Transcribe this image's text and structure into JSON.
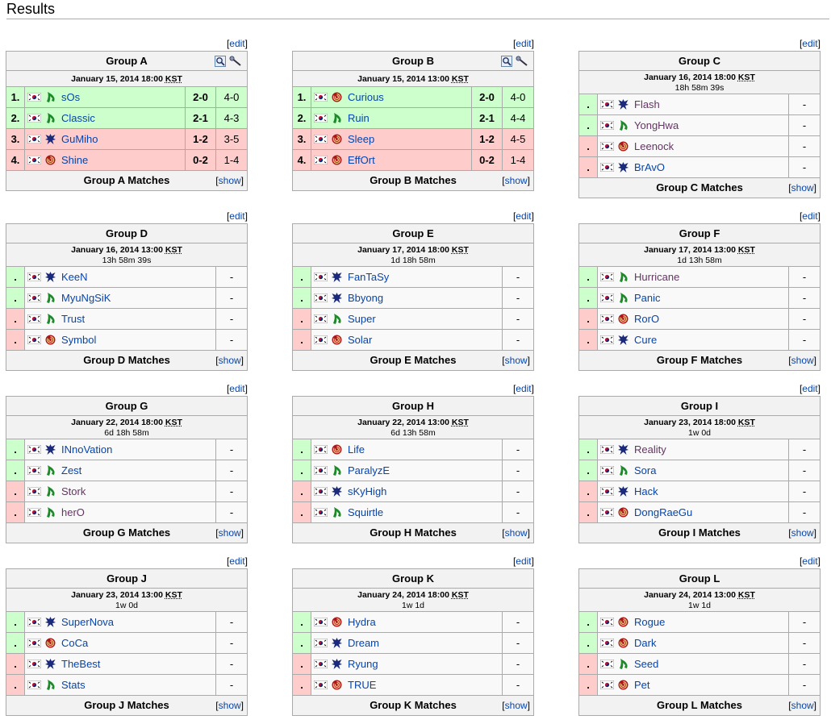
{
  "page": {
    "title": "Results"
  },
  "labels": {
    "edit": "edit",
    "show": "show",
    "dash": "-",
    "dot": "."
  },
  "groups": [
    {
      "name": "Group A",
      "date": "January 15, 2014 18:00",
      "tz": "KST",
      "countdown": "",
      "matches_label": "Group A Matches",
      "complete": true,
      "players": [
        {
          "rank": "1.",
          "name": "sOs",
          "race": "protoss",
          "status": "up",
          "score": "2-0",
          "maps": "4-0",
          "visited": false
        },
        {
          "rank": "2.",
          "name": "Classic",
          "race": "protoss",
          "status": "up",
          "score": "2-1",
          "maps": "4-3",
          "visited": false
        },
        {
          "rank": "3.",
          "name": "GuMiho",
          "race": "terran",
          "status": "down",
          "score": "1-2",
          "maps": "3-5",
          "visited": false
        },
        {
          "rank": "4.",
          "name": "Shine",
          "race": "zerg",
          "status": "down",
          "score": "0-2",
          "maps": "1-4",
          "visited": false
        }
      ]
    },
    {
      "name": "Group B",
      "date": "January 15, 2014 13:00",
      "tz": "KST",
      "countdown": "",
      "matches_label": "Group B Matches",
      "complete": true,
      "players": [
        {
          "rank": "1.",
          "name": "Curious",
          "race": "zerg",
          "status": "up",
          "score": "2-0",
          "maps": "4-0",
          "visited": false
        },
        {
          "rank": "2.",
          "name": "Ruin",
          "race": "protoss",
          "status": "up",
          "score": "2-1",
          "maps": "4-4",
          "visited": false
        },
        {
          "rank": "3.",
          "name": "Sleep",
          "race": "zerg",
          "status": "down",
          "score": "1-2",
          "maps": "4-5",
          "visited": false
        },
        {
          "rank": "4.",
          "name": "EffOrt",
          "race": "zerg",
          "status": "down",
          "score": "0-2",
          "maps": "1-4",
          "visited": false
        }
      ]
    },
    {
      "name": "Group C",
      "date": "January 16, 2014 18:00",
      "tz": "KST",
      "countdown": "18h 58m 39s",
      "matches_label": "Group C Matches",
      "complete": false,
      "players": [
        {
          "name": "Flash",
          "race": "terran",
          "status": "up",
          "visited": true
        },
        {
          "name": "YongHwa",
          "race": "protoss",
          "status": "up",
          "visited": true
        },
        {
          "name": "Leenock",
          "race": "zerg",
          "status": "down",
          "visited": true
        },
        {
          "name": "BrAvO",
          "race": "terran",
          "status": "down",
          "visited": false
        }
      ]
    },
    {
      "name": "Group D",
      "date": "January 16, 2014 13:00",
      "tz": "KST",
      "countdown": "13h 58m 39s",
      "matches_label": "Group D Matches",
      "complete": false,
      "players": [
        {
          "name": "KeeN",
          "race": "terran",
          "status": "up",
          "visited": false
        },
        {
          "name": "MyuNgSiK",
          "race": "protoss",
          "status": "up",
          "visited": false
        },
        {
          "name": "Trust",
          "race": "protoss",
          "status": "down",
          "visited": false
        },
        {
          "name": "Symbol",
          "race": "zerg",
          "status": "down",
          "visited": false
        }
      ]
    },
    {
      "name": "Group E",
      "date": "January 17, 2014 18:00",
      "tz": "KST",
      "countdown": "1d 18h 58m",
      "matches_label": "Group E Matches",
      "complete": false,
      "players": [
        {
          "name": "FanTaSy",
          "race": "terran",
          "status": "up",
          "visited": false
        },
        {
          "name": "Bbyong",
          "race": "terran",
          "status": "up",
          "visited": false
        },
        {
          "name": "Super",
          "race": "protoss",
          "status": "down",
          "visited": false
        },
        {
          "name": "Solar",
          "race": "zerg",
          "status": "down",
          "visited": false
        }
      ]
    },
    {
      "name": "Group F",
      "date": "January 17, 2014 13:00",
      "tz": "KST",
      "countdown": "1d 13h 58m",
      "matches_label": "Group F Matches",
      "complete": false,
      "players": [
        {
          "name": "Hurricane",
          "race": "protoss",
          "status": "up",
          "visited": true
        },
        {
          "name": "Panic",
          "race": "protoss",
          "status": "up",
          "visited": false
        },
        {
          "name": "RorO",
          "race": "zerg",
          "status": "down",
          "visited": false
        },
        {
          "name": "Cure",
          "race": "terran",
          "status": "down",
          "visited": false
        }
      ]
    },
    {
      "name": "Group G",
      "date": "January 22, 2014 18:00",
      "tz": "KST",
      "countdown": "6d 18h 58m",
      "matches_label": "Group G Matches",
      "complete": false,
      "players": [
        {
          "name": "INnoVation",
          "race": "terran",
          "status": "up",
          "visited": false
        },
        {
          "name": "Zest",
          "race": "protoss",
          "status": "up",
          "visited": false
        },
        {
          "name": "Stork",
          "race": "protoss",
          "status": "down",
          "visited": true
        },
        {
          "name": "herO",
          "race": "protoss",
          "status": "down",
          "visited": true
        }
      ]
    },
    {
      "name": "Group H",
      "date": "January 22, 2014 13:00",
      "tz": "KST",
      "countdown": "6d 13h 58m",
      "matches_label": "Group H Matches",
      "complete": false,
      "players": [
        {
          "name": "Life",
          "race": "zerg",
          "status": "up",
          "visited": false
        },
        {
          "name": "ParalyzE",
          "race": "protoss",
          "status": "up",
          "visited": false
        },
        {
          "name": "sKyHigh",
          "race": "terran",
          "status": "down",
          "visited": false
        },
        {
          "name": "Squirtle",
          "race": "protoss",
          "status": "down",
          "visited": false
        }
      ]
    },
    {
      "name": "Group I",
      "date": "January 23, 2014 18:00",
      "tz": "KST",
      "countdown": "1w 0d",
      "matches_label": "Group I Matches",
      "complete": false,
      "players": [
        {
          "name": "Reality",
          "race": "terran",
          "status": "up",
          "visited": true
        },
        {
          "name": "Sora",
          "race": "protoss",
          "status": "up",
          "visited": false
        },
        {
          "name": "Hack",
          "race": "terran",
          "status": "down",
          "visited": false
        },
        {
          "name": "DongRaeGu",
          "race": "zerg",
          "status": "down",
          "visited": false
        }
      ]
    },
    {
      "name": "Group J",
      "date": "January 23, 2014 13:00",
      "tz": "KST",
      "countdown": "1w 0d",
      "matches_label": "Group J Matches",
      "complete": false,
      "players": [
        {
          "name": "SuperNova",
          "race": "terran",
          "status": "up",
          "visited": false
        },
        {
          "name": "CoCa",
          "race": "zerg",
          "status": "up",
          "visited": false
        },
        {
          "name": "TheBest",
          "race": "terran",
          "status": "down",
          "visited": false
        },
        {
          "name": "Stats",
          "race": "protoss",
          "status": "down",
          "visited": false
        }
      ]
    },
    {
      "name": "Group K",
      "date": "January 24, 2014 18:00",
      "tz": "KST",
      "countdown": "1w 1d",
      "matches_label": "Group K Matches",
      "complete": false,
      "players": [
        {
          "name": "Hydra",
          "race": "zerg",
          "status": "up",
          "visited": false
        },
        {
          "name": "Dream",
          "race": "terran",
          "status": "up",
          "visited": false
        },
        {
          "name": "Ryung",
          "race": "terran",
          "status": "down",
          "visited": false
        },
        {
          "name": "TRUE",
          "race": "zerg",
          "status": "down",
          "visited": false
        }
      ]
    },
    {
      "name": "Group L",
      "date": "January 24, 2014 13:00",
      "tz": "KST",
      "countdown": "1w 1d",
      "matches_label": "Group L Matches",
      "complete": false,
      "players": [
        {
          "name": "Rogue",
          "race": "zerg",
          "status": "up",
          "visited": false
        },
        {
          "name": "Dark",
          "race": "zerg",
          "status": "up",
          "visited": false
        },
        {
          "name": "Seed",
          "race": "protoss",
          "status": "down",
          "visited": false
        },
        {
          "name": "Pet",
          "race": "zerg",
          "status": "down",
          "visited": false
        }
      ]
    }
  ],
  "colors": {
    "up": "#ccffcc",
    "down": "#ffcccc",
    "link": "#0645ad",
    "visited": "#663366",
    "border": "#aaaaaa",
    "header_bg": "#f2f2f2"
  },
  "icons": {
    "flag": "korea-flag-icon",
    "terran": "terran-icon",
    "protoss": "protoss-icon",
    "zerg": "zerg-icon",
    "head_left": "magnifier-icon",
    "head_right": "wand-icon"
  }
}
